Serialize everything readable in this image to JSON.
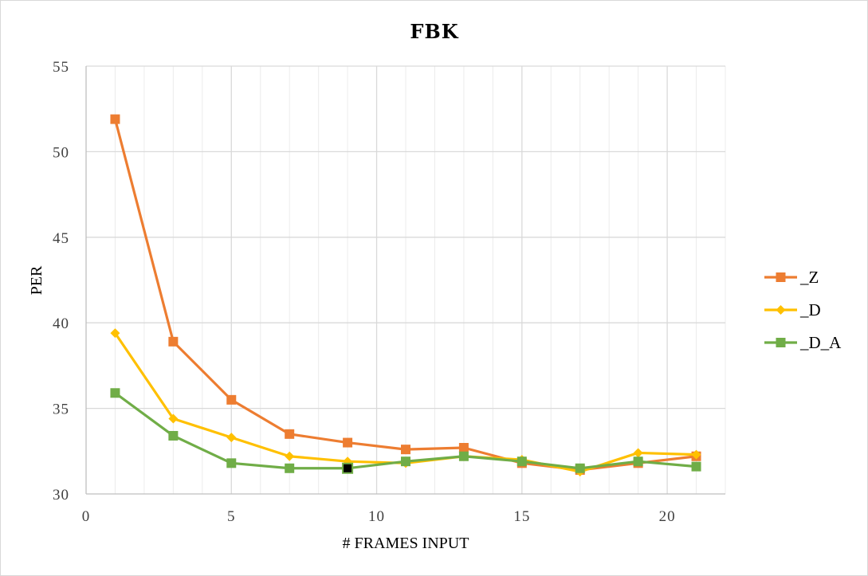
{
  "chart_data": {
    "type": "line",
    "title": "FBK",
    "xlabel": "# FRAMES INPUT",
    "ylabel": "PER",
    "xlim": [
      0,
      22
    ],
    "ylim": [
      30,
      55
    ],
    "x_ticks": [
      "0",
      "5",
      "10",
      "15",
      "20"
    ],
    "y_ticks": [
      "30",
      "35",
      "40",
      "45",
      "50",
      "55"
    ],
    "grid": true,
    "legend_position": "right",
    "x": [
      1,
      3,
      5,
      7,
      9,
      11,
      13,
      15,
      17,
      19,
      21
    ],
    "series": [
      {
        "name": "_Z",
        "color": "#ED7D31",
        "marker": "square",
        "values": [
          51.9,
          38.9,
          35.5,
          33.5,
          33.0,
          32.6,
          32.7,
          31.8,
          31.4,
          31.8,
          32.2
        ]
      },
      {
        "name": "_D",
        "color": "#FFC000",
        "marker": "diamond",
        "values": [
          39.4,
          34.4,
          33.3,
          32.2,
          31.9,
          31.8,
          32.2,
          32.0,
          31.3,
          32.4,
          32.3
        ]
      },
      {
        "name": "_D_A",
        "color": "#70AD47",
        "marker": "square",
        "highlight_point_color": "#000000",
        "highlight_index": 4,
        "values": [
          35.9,
          33.4,
          31.8,
          31.5,
          31.5,
          31.9,
          32.2,
          31.9,
          31.5,
          31.9,
          31.6
        ]
      }
    ]
  }
}
